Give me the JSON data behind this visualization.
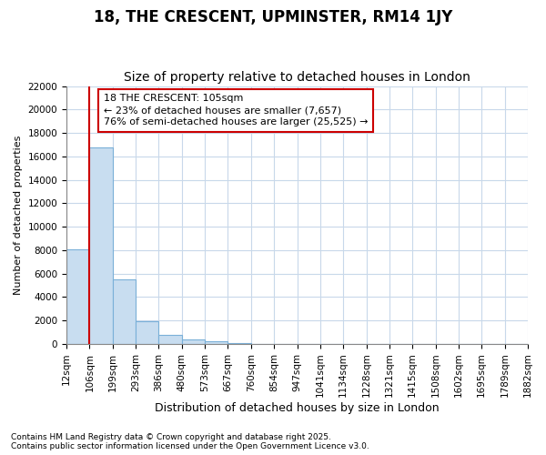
{
  "title1": "18, THE CRESCENT, UPMINSTER, RM14 1JY",
  "title2": "Size of property relative to detached houses in London",
  "xlabel": "Distribution of detached houses by size in London",
  "ylabel": "Number of detached properties",
  "bar_labels": [
    "12sqm",
    "106sqm",
    "199sqm",
    "293sqm",
    "386sqm",
    "480sqm",
    "573sqm",
    "667sqm",
    "760sqm",
    "854sqm",
    "947sqm",
    "1041sqm",
    "1134sqm",
    "1228sqm",
    "1321sqm",
    "1415sqm",
    "1508sqm",
    "1602sqm",
    "1695sqm",
    "1789sqm",
    "1882sqm"
  ],
  "bar_heights": [
    8100,
    16800,
    5500,
    1900,
    800,
    400,
    200,
    100,
    0,
    0,
    0,
    0,
    0,
    0,
    0,
    0,
    0,
    0,
    0,
    0
  ],
  "bar_color": "#c8ddf0",
  "bar_edge_color": "#7ab0d8",
  "grid_color": "#c8d8ea",
  "background_color": "#ffffff",
  "fig_background_color": "#ffffff",
  "red_line_color": "#cc0000",
  "annotation_line1": "18 THE CRESCENT: 105sqm",
  "annotation_line2": "← 23% of detached houses are smaller (7,657)",
  "annotation_line3": "76% of semi-detached houses are larger (25,525) →",
  "annotation_box_color": "#ffffff",
  "annotation_box_edge": "#cc0000",
  "ylim": [
    0,
    22000
  ],
  "yticks": [
    0,
    2000,
    4000,
    6000,
    8000,
    10000,
    12000,
    14000,
    16000,
    18000,
    20000,
    22000
  ],
  "footer1": "Contains HM Land Registry data © Crown copyright and database right 2025.",
  "footer2": "Contains public sector information licensed under the Open Government Licence v3.0.",
  "title1_fontsize": 12,
  "title2_fontsize": 10,
  "tick_fontsize": 7.5,
  "ylabel_fontsize": 8,
  "xlabel_fontsize": 9,
  "annotation_fontsize": 8,
  "footer_fontsize": 6.5
}
